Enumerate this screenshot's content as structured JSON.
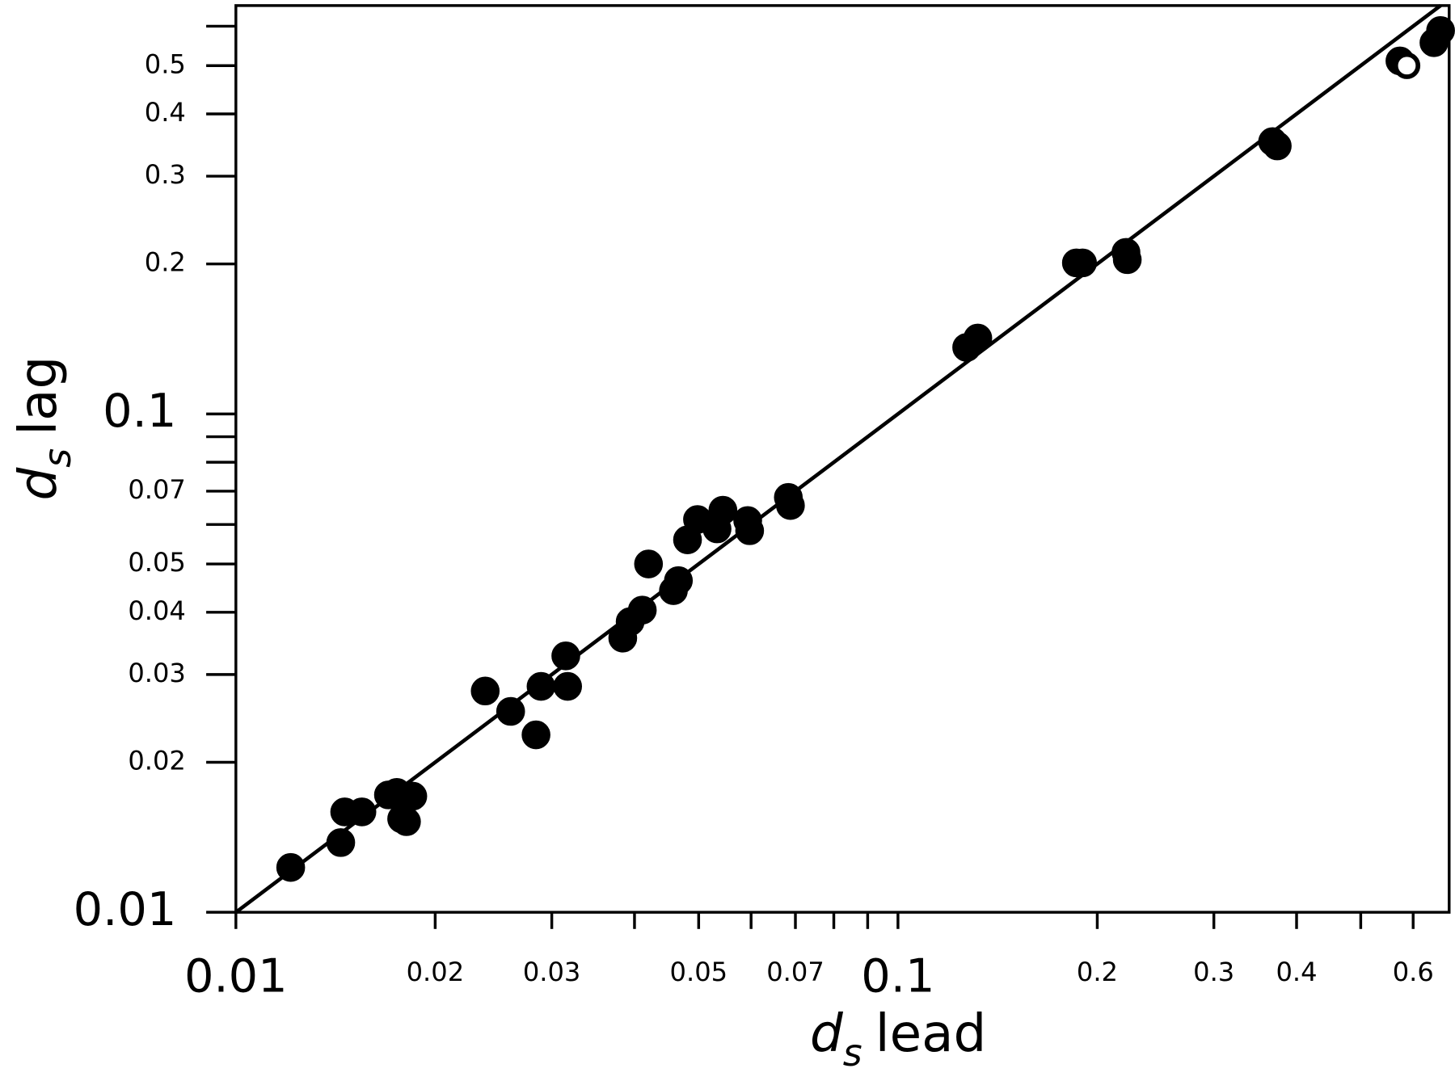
{
  "chart_data": {
    "type": "scatter",
    "xlabel": [
      "d",
      "s",
      "lead"
    ],
    "ylabel": [
      "d",
      "s",
      "lag"
    ],
    "xscale": "log",
    "yscale": "log",
    "xlim": [
      0.01,
      0.68
    ],
    "ylim": [
      0.01,
      0.66
    ],
    "xticks": [
      0.01,
      0.02,
      0.03,
      0.05,
      0.07,
      0.1,
      0.2,
      0.3,
      0.4,
      0.6
    ],
    "xminor_ticks": [
      0.04,
      0.06,
      0.08,
      0.09,
      0.5
    ],
    "yticks": [
      0.01,
      0.02,
      0.03,
      0.04,
      0.05,
      0.07,
      0.1,
      0.2,
      0.3,
      0.4,
      0.5
    ],
    "yminor_ticks": [
      0.06,
      0.08,
      0.09,
      0.6
    ],
    "identity_line": true,
    "series": [
      {
        "marker": "filled",
        "color": "#000000",
        "x": [
          0.0121,
          0.0144,
          0.0146,
          0.0155,
          0.017,
          0.0175,
          0.0178,
          0.0181,
          0.0185,
          0.0238,
          0.026,
          0.0284,
          0.0289,
          0.0315,
          0.0317,
          0.0384,
          0.0394,
          0.0411,
          0.042,
          0.0458,
          0.0466,
          0.0481,
          0.0498,
          0.0533,
          0.0544,
          0.0593,
          0.0597,
          0.0683,
          0.0688,
          0.127,
          0.132,
          0.186,
          0.19,
          0.221,
          0.222,
          0.368,
          0.374,
          0.573,
          0.645,
          0.66
        ],
        "values": [
          0.0123,
          0.0138,
          0.0159,
          0.0159,
          0.0172,
          0.0174,
          0.0154,
          0.0152,
          0.0171,
          0.0278,
          0.0253,
          0.0227,
          0.0284,
          0.0327,
          0.0284,
          0.0355,
          0.0383,
          0.0404,
          0.05,
          0.0442,
          0.0463,
          0.0559,
          0.0614,
          0.0588,
          0.0641,
          0.0611,
          0.0583,
          0.068,
          0.0655,
          0.136,
          0.142,
          0.201,
          0.201,
          0.211,
          0.204,
          0.352,
          0.345,
          0.511,
          0.556,
          0.588
        ]
      },
      {
        "marker": "open",
        "color": "#000000",
        "x": [
          0.587
        ],
        "values": [
          0.5
        ]
      }
    ]
  }
}
